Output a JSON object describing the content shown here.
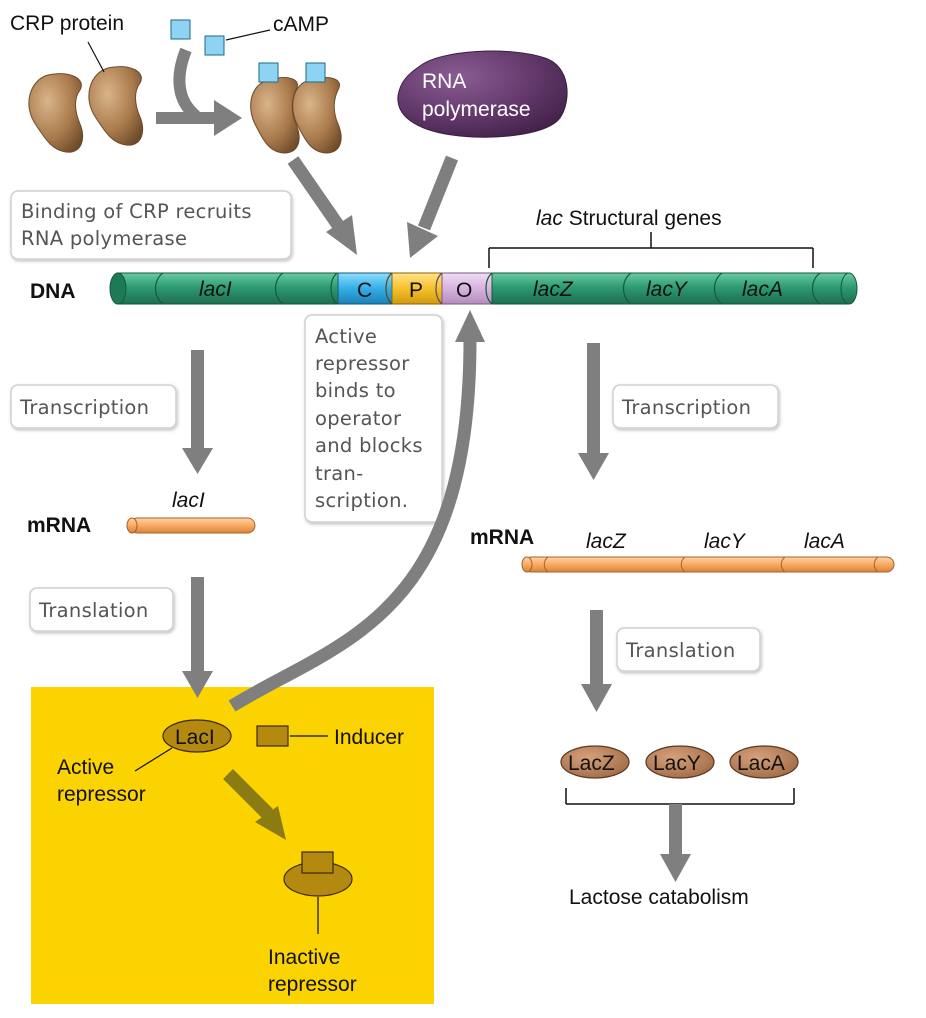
{
  "labels": {
    "crp_protein": "CRP protein",
    "camp": "cAMP",
    "rna_polymerase_line1": "RNA",
    "rna_polymerase_line2": "polymerase",
    "binding_line1": "Binding of CRP recruits",
    "binding_line2": "RNA polymerase",
    "structural_genes_prefix": "lac",
    "structural_genes_suffix": " Structural genes",
    "dna": "DNA",
    "mrna_left": "mRNA",
    "mrna_right": "mRNA",
    "transcription_left": "Transcription",
    "transcription_right": "Transcription",
    "translation_left": "Translation",
    "translation_right": "Translation",
    "active_repressor_note": [
      "Active",
      "repressor",
      "binds to",
      "operator",
      "and blocks",
      "tran-",
      "scription."
    ],
    "inducer": "Inducer",
    "active_repressor_line1": "Active",
    "active_repressor_line2": "repressor",
    "inactive_repressor_line1": "Inactive",
    "inactive_repressor_line2": "repressor",
    "lactose_catabolism": "Lactose catabolism"
  },
  "dna_segments": {
    "laci": "lacI",
    "c": "C",
    "p": "P",
    "o": "O",
    "lacz": "lacZ",
    "lacy": "lacY",
    "laca": "lacA"
  },
  "mrna_left_gene": "lacI",
  "mrna_right_genes": [
    "lacZ",
    "lacY",
    "lacA"
  ],
  "proteins": {
    "laci": "LacI",
    "lacz": "LacZ",
    "lacy": "LacY",
    "laca": "LacA"
  },
  "colors": {
    "dna_green": "#2e9c72",
    "crp_segment_blue": "#33aee6",
    "promoter_yellow": "#f6c12c",
    "operator_lilac": "#d7b3de",
    "mrna_orange": "#f7ab62",
    "crp_brown": "#a97a4b",
    "camp_blue": "#8fd3f2",
    "polymerase_purple": "#5e3566",
    "arrow_gray": "#7f7f7f",
    "cell_yellow": "#fbd300",
    "repressor_olive": "#b38a0f",
    "inducer_arrow_olive": "#8b7b12",
    "protein_brown": "#b27a52"
  }
}
